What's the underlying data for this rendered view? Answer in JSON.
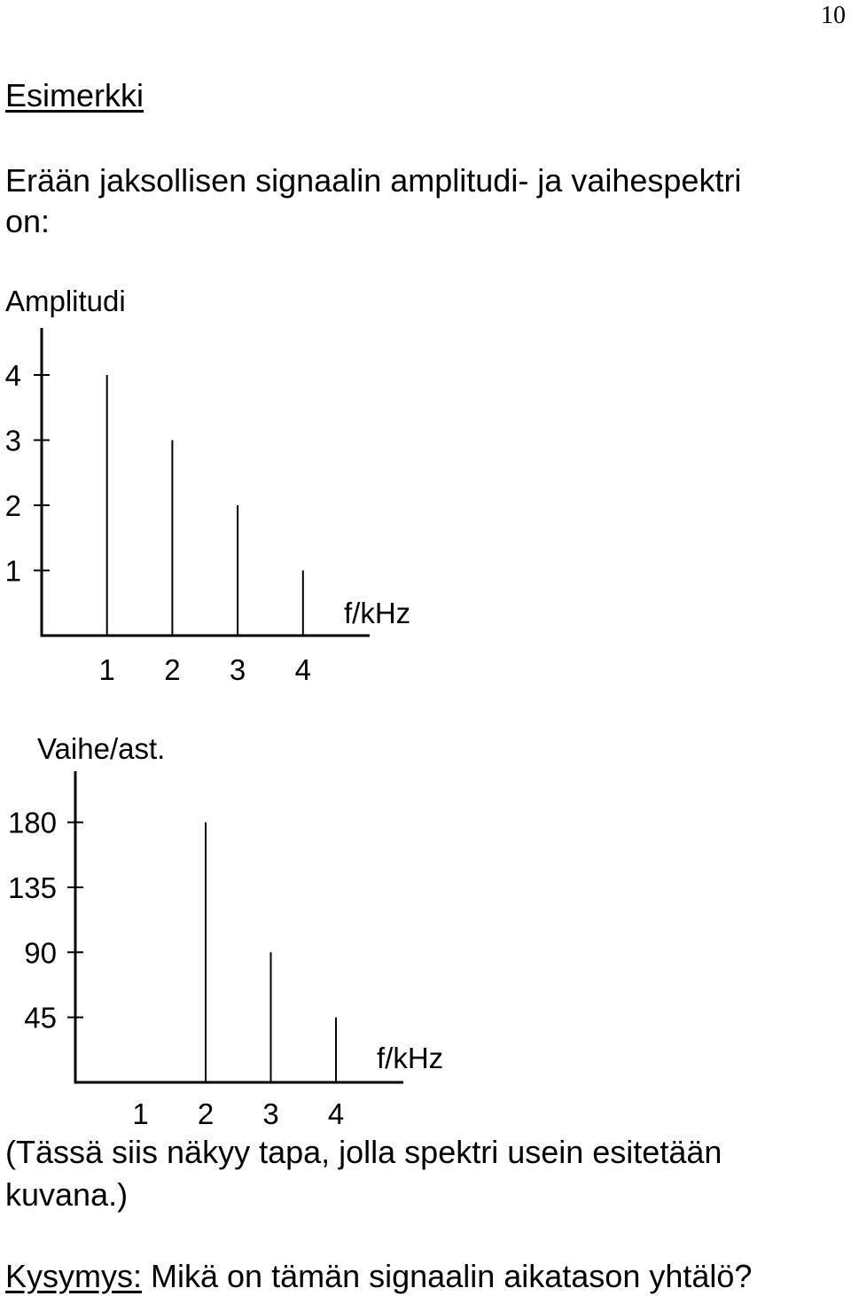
{
  "page_number": "10",
  "heading": "Esimerkki",
  "intro_line1": "Erään jaksollisen signaalin amplitudi- ja vaihespektri",
  "intro_line2": "on:",
  "chart_data": [
    {
      "type": "bar",
      "title": "Amplitudi",
      "xlabel": "f/kHz",
      "ylabel": "Amplitudi",
      "x_ticks": [
        "1",
        "2",
        "3",
        "4"
      ],
      "y_ticks": [
        "1",
        "2",
        "3",
        "4"
      ],
      "x": [
        1,
        2,
        3,
        4
      ],
      "values": [
        4,
        3,
        2,
        1
      ],
      "xlim": [
        0,
        4.7
      ],
      "ylim": [
        0,
        4.7
      ]
    },
    {
      "type": "bar",
      "title": "Vaihe/ast.",
      "xlabel": "f/kHz",
      "ylabel": "Vaihe/ast.",
      "x_ticks": [
        "1",
        "2",
        "3",
        "4"
      ],
      "y_ticks": [
        "45",
        "90",
        "135",
        "180"
      ],
      "x": [
        1,
        2,
        3,
        4
      ],
      "values": [
        0,
        180,
        90,
        45
      ],
      "xlim": [
        0,
        4.7
      ],
      "ylim": [
        0,
        210
      ]
    }
  ],
  "caption_line1": "(Tässä siis näkyy tapa, jolla spektri usein esitetään",
  "caption_line2": "kuvana.)",
  "question_label": "Kysymys:",
  "question_text": " Mikä on tämän signaalin aikatason yhtälö?"
}
